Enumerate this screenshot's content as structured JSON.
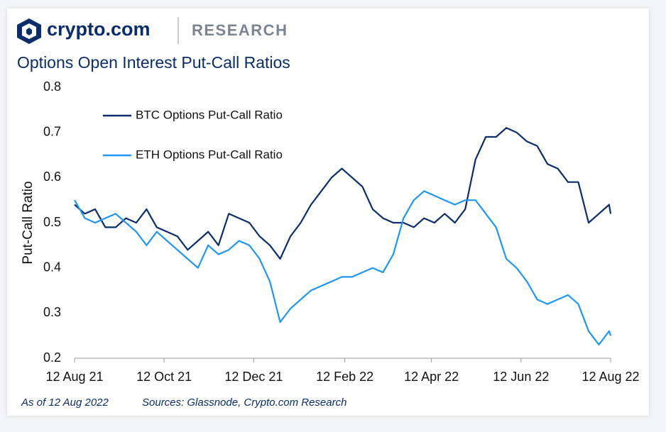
{
  "header": {
    "brand": "crypto.com",
    "section": "RESEARCH"
  },
  "chart_data": {
    "type": "line",
    "title": "Options Open Interest Put-Call Ratios",
    "y_label": "Put-Call Ratio",
    "notes": [
      "As of 12 Aug 2022",
      "Sources: Glassnode, Crypto.com Research"
    ],
    "x": [
      "2021-08-12",
      "2021-08-19",
      "2021-08-26",
      "2021-09-02",
      "2021-09-09",
      "2021-09-16",
      "2021-09-23",
      "2021-09-30",
      "2021-10-07",
      "2021-10-14",
      "2021-10-21",
      "2021-10-28",
      "2021-11-04",
      "2021-11-11",
      "2021-11-18",
      "2021-11-25",
      "2021-12-02",
      "2021-12-09",
      "2021-12-16",
      "2021-12-23",
      "2021-12-30",
      "2022-01-06",
      "2022-01-13",
      "2022-01-20",
      "2022-01-27",
      "2022-02-03",
      "2022-02-10",
      "2022-02-17",
      "2022-02-24",
      "2022-03-03",
      "2022-03-10",
      "2022-03-17",
      "2022-03-24",
      "2022-03-31",
      "2022-04-07",
      "2022-04-14",
      "2022-04-21",
      "2022-04-28",
      "2022-05-05",
      "2022-05-12",
      "2022-05-19",
      "2022-05-26",
      "2022-06-02",
      "2022-06-09",
      "2022-06-16",
      "2022-06-23",
      "2022-06-30",
      "2022-07-07",
      "2022-07-14",
      "2022-07-21",
      "2022-07-28",
      "2022-08-04",
      "2022-08-11",
      "2022-08-12"
    ],
    "series": [
      {
        "name": "BTC Options Put-Call Ratio",
        "color": "#0b2d6b",
        "values": [
          0.54,
          0.52,
          0.53,
          0.49,
          0.49,
          0.51,
          0.5,
          0.53,
          0.49,
          0.48,
          0.47,
          0.44,
          0.46,
          0.48,
          0.45,
          0.52,
          0.51,
          0.5,
          0.47,
          0.45,
          0.42,
          0.47,
          0.5,
          0.54,
          0.57,
          0.6,
          0.62,
          0.6,
          0.58,
          0.53,
          0.51,
          0.5,
          0.5,
          0.49,
          0.51,
          0.5,
          0.52,
          0.5,
          0.53,
          0.64,
          0.69,
          0.69,
          0.71,
          0.7,
          0.68,
          0.67,
          0.63,
          0.62,
          0.59,
          0.59,
          0.5,
          0.52,
          0.54,
          0.52
        ]
      },
      {
        "name": "ETH Options Put-Call Ratio",
        "color": "#2196f3",
        "values": [
          0.55,
          0.51,
          0.5,
          0.51,
          0.52,
          0.5,
          0.48,
          0.45,
          0.48,
          0.46,
          0.44,
          0.42,
          0.4,
          0.45,
          0.43,
          0.44,
          0.46,
          0.45,
          0.42,
          0.37,
          0.28,
          0.31,
          0.33,
          0.35,
          0.36,
          0.37,
          0.38,
          0.38,
          0.39,
          0.4,
          0.39,
          0.43,
          0.51,
          0.55,
          0.57,
          0.56,
          0.55,
          0.54,
          0.55,
          0.55,
          0.52,
          0.49,
          0.42,
          0.4,
          0.37,
          0.33,
          0.32,
          0.33,
          0.34,
          0.32,
          0.26,
          0.23,
          0.26,
          0.25
        ]
      }
    ],
    "xlim": [
      "2021-08-12",
      "2022-08-12"
    ],
    "xticks": [
      {
        "value": "2021-08-12",
        "label": "12 Aug 21"
      },
      {
        "value": "2021-10-12",
        "label": "12 Oct 21"
      },
      {
        "value": "2021-12-12",
        "label": "12 Dec 21"
      },
      {
        "value": "2022-02-12",
        "label": "12 Feb 22"
      },
      {
        "value": "2022-04-12",
        "label": "12 Apr 22"
      },
      {
        "value": "2022-06-12",
        "label": "12 Jun 22"
      },
      {
        "value": "2022-08-12",
        "label": "12 Aug 22"
      }
    ],
    "ylim": [
      0.2,
      0.8
    ],
    "yticks": [
      0.2,
      0.3,
      0.4,
      0.5,
      0.6,
      0.7,
      0.8
    ],
    "grid": false,
    "legend": "upper-left"
  }
}
